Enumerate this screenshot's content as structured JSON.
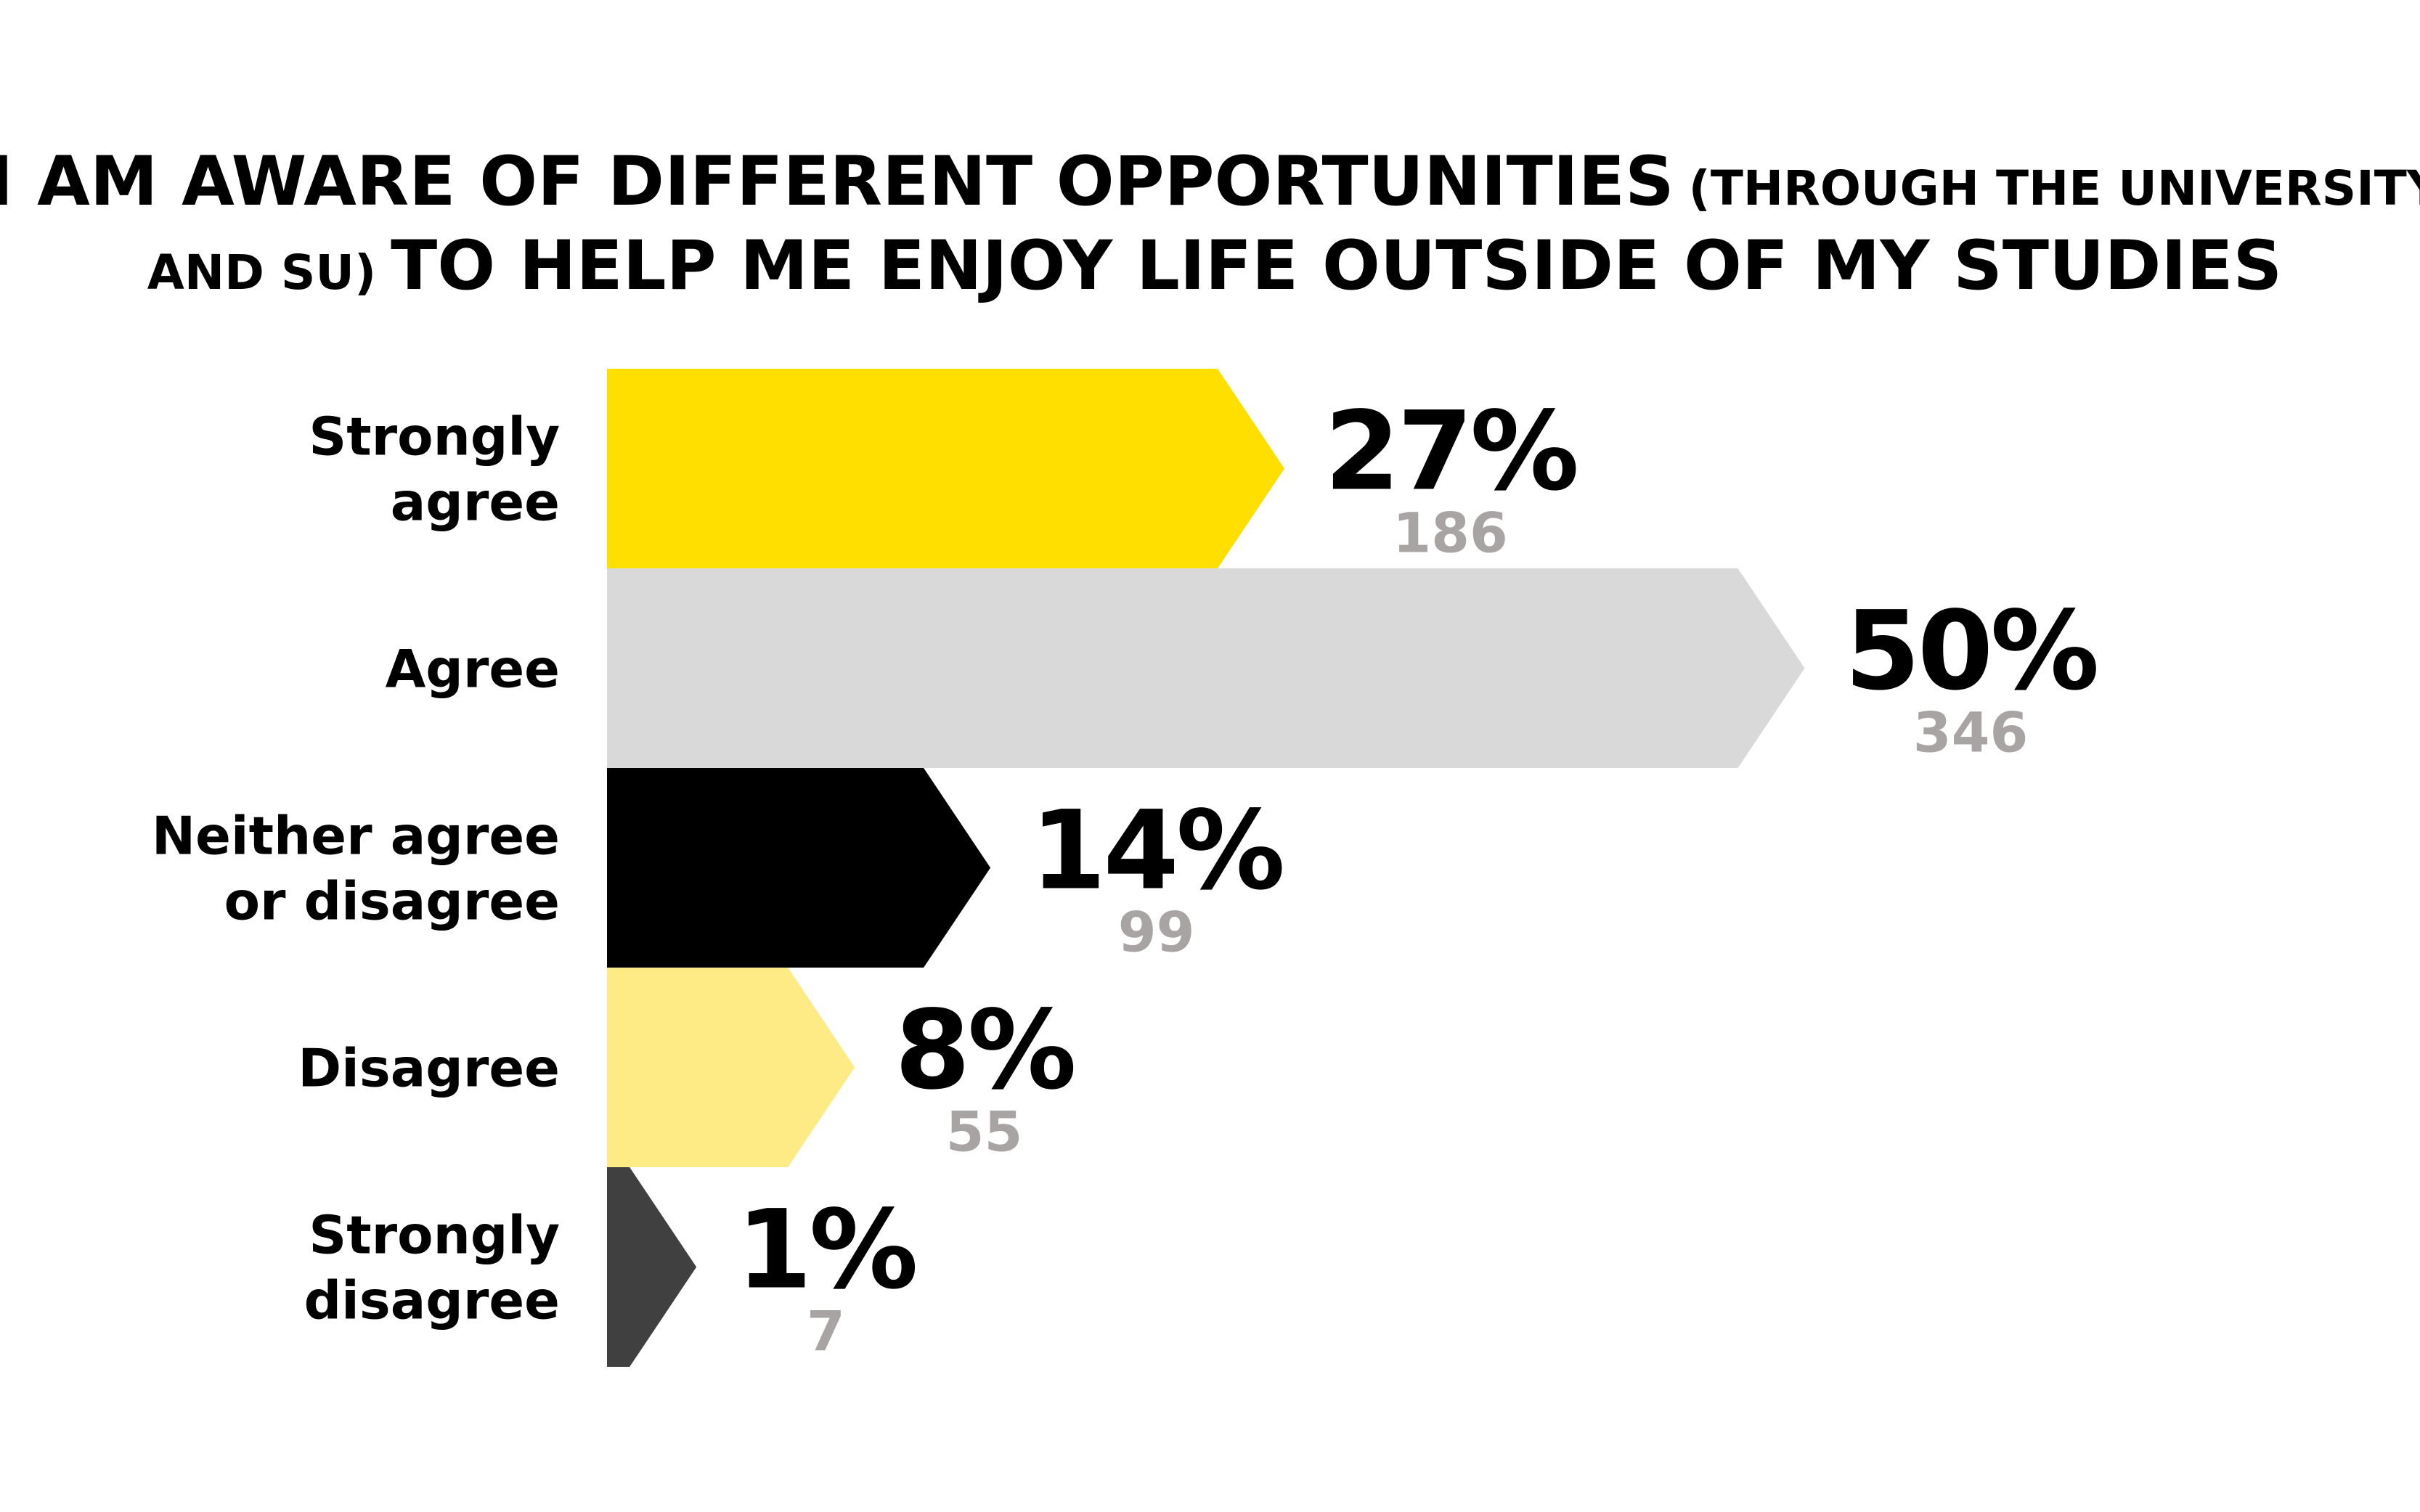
{
  "chart_data": {
    "type": "bar",
    "orientation": "horizontal",
    "title_parts": [
      {
        "line": 1,
        "big": "I AM AWARE OF DIFFERENT OPPORTUNITIES",
        "small": "(THROUGH THE UNIVERSITY"
      },
      {
        "line": 2,
        "small": "AND SU)",
        "big": "TO HELP ME ENJOY LIFE OUTSIDE OF MY STUDIES"
      }
    ],
    "categories": [
      "Strongly agree",
      "Agree",
      "Neither agree or disagree",
      "Disagree",
      "Strongly disagree"
    ],
    "category_lines": [
      [
        "Strongly",
        "agree"
      ],
      [
        "Agree"
      ],
      [
        "Neither agree",
        "or disagree"
      ],
      [
        "Disagree"
      ],
      [
        "Strongly",
        "disagree"
      ]
    ],
    "values": [
      27,
      50,
      14,
      8,
      1
    ],
    "value_labels": [
      "27%",
      "50%",
      "14%",
      "8%",
      "1%"
    ],
    "counts": [
      "186",
      "346",
      "99",
      "55",
      "7"
    ],
    "colors": [
      "#ffdf00",
      "#d9d9d9",
      "#000000",
      "#ffeb85",
      "#404040"
    ],
    "count_color": "#a8a4a4",
    "grid": false,
    "axes_visible": false
  }
}
